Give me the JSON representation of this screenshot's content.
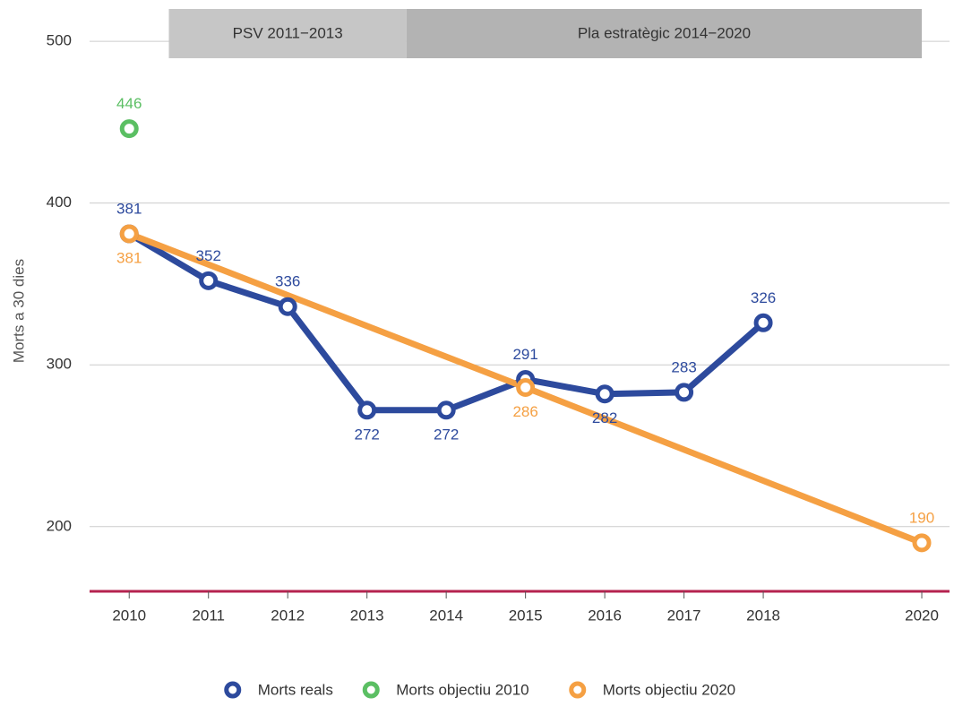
{
  "chart_data": {
    "type": "line",
    "y_label": "Morts a 30 dies",
    "x": [
      2010,
      2011,
      2012,
      2013,
      2014,
      2015,
      2016,
      2017,
      2018,
      2020
    ],
    "series": [
      {
        "name": "Morts reals",
        "color": "#2d4a9d",
        "values": [
          381,
          352,
          336,
          272,
          272,
          291,
          282,
          283,
          326,
          null
        ]
      },
      {
        "name": "Morts objectiu 2010",
        "color": "#5bbf63",
        "values": [
          446,
          null,
          null,
          null,
          null,
          null,
          null,
          null,
          null,
          null
        ]
      },
      {
        "name": "Morts objectiu 2020",
        "color": "#f5a043",
        "values": [
          381,
          null,
          null,
          null,
          null,
          286,
          null,
          null,
          null,
          190
        ]
      }
    ],
    "periods": [
      {
        "label": "PSV 2011−2013",
        "start": 2010.5,
        "end": 2013.5
      },
      {
        "label": "Pla estratègic 2014−2020",
        "start": 2013.5,
        "end": 2020
      }
    ],
    "xlim": [
      2009.5,
      2020.35
    ],
    "ylim": [
      160,
      520
    ],
    "xticks": [
      2010,
      2011,
      2012,
      2013,
      2014,
      2015,
      2016,
      2017,
      2018,
      2020
    ],
    "yticks": [
      200,
      300,
      400,
      500
    ],
    "grid": true,
    "legend": "bottom"
  }
}
